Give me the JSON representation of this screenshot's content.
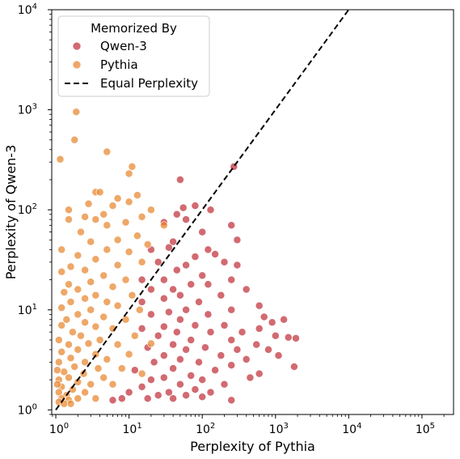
{
  "chart_data": {
    "type": "scatter",
    "xlabel": "Perplexity of Pythia",
    "ylabel": "Perplexity of Qwen-3",
    "xscale": "log",
    "yscale": "log",
    "xlim": [
      0.88,
      270000
    ],
    "ylim": [
      0.9,
      10000
    ],
    "x_ticks": [
      {
        "value": 1,
        "base": "10",
        "exp": "0"
      },
      {
        "value": 10,
        "base": "10",
        "exp": "1"
      },
      {
        "value": 100,
        "base": "10",
        "exp": "2"
      },
      {
        "value": 1000,
        "base": "10",
        "exp": "3"
      },
      {
        "value": 10000,
        "base": "10",
        "exp": "4"
      },
      {
        "value": 100000,
        "base": "10",
        "exp": "5"
      }
    ],
    "y_ticks": [
      {
        "value": 1,
        "base": "10",
        "exp": "0"
      },
      {
        "value": 10,
        "base": "10",
        "exp": "1"
      },
      {
        "value": 100,
        "base": "10",
        "exp": "2"
      },
      {
        "value": 1000,
        "base": "10",
        "exp": "3"
      },
      {
        "value": 10000,
        "base": "10",
        "exp": "4"
      }
    ],
    "grid": false,
    "legend": {
      "placement": "top-left",
      "title": "Memorized By",
      "entries": [
        {
          "label": "Qwen-3",
          "kind": "marker",
          "color": "#c0303a"
        },
        {
          "label": "Pythia",
          "kind": "marker",
          "color": "#e8872e"
        },
        {
          "label": "Equal Perplexity",
          "kind": "dashed-line",
          "color": "#000000"
        }
      ]
    },
    "reference_line": {
      "name": "Equal Perplexity",
      "x": [
        1,
        10000
      ],
      "y": [
        1,
        10000
      ],
      "style": "dashed",
      "color": "#000000"
    },
    "series": [
      {
        "name": "Qwen-3",
        "color": "#c0303a",
        "points": [
          [
            270,
            270
          ],
          [
            50,
            200
          ],
          [
            80,
            110
          ],
          [
            55,
            105
          ],
          [
            130,
            100
          ],
          [
            45,
            90
          ],
          [
            60,
            80
          ],
          [
            30,
            75
          ],
          [
            250,
            70
          ],
          [
            100,
            60
          ],
          [
            300,
            50
          ],
          [
            40,
            48
          ],
          [
            35,
            42
          ],
          [
            20,
            40
          ],
          [
            120,
            40
          ],
          [
            150,
            36
          ],
          [
            80,
            34
          ],
          [
            200,
            30
          ],
          [
            25,
            30
          ],
          [
            60,
            28
          ],
          [
            300,
            28
          ],
          [
            45,
            25
          ],
          [
            100,
            22
          ],
          [
            30,
            20
          ],
          [
            15,
            20
          ],
          [
            250,
            20
          ],
          [
            70,
            18
          ],
          [
            120,
            18
          ],
          [
            40,
            16
          ],
          [
            20,
            16
          ],
          [
            400,
            16
          ],
          [
            50,
            14
          ],
          [
            180,
            14
          ],
          [
            30,
            13
          ],
          [
            90,
            12
          ],
          [
            15,
            12
          ],
          [
            600,
            11
          ],
          [
            60,
            10
          ],
          [
            250,
            10
          ],
          [
            35,
            9.5
          ],
          [
            120,
            9
          ],
          [
            20,
            9
          ],
          [
            700,
            8.5
          ],
          [
            50,
            8
          ],
          [
            1300,
            8
          ],
          [
            900,
            7.5
          ],
          [
            80,
            7
          ],
          [
            200,
            7
          ],
          [
            30,
            6.8
          ],
          [
            600,
            6.5
          ],
          [
            15,
            6.5
          ],
          [
            45,
            6
          ],
          [
            130,
            6
          ],
          [
            350,
            6
          ],
          [
            1000,
            5.5
          ],
          [
            1900,
            5.2
          ],
          [
            1500,
            5.3
          ],
          [
            25,
            5.5
          ],
          [
            70,
            5
          ],
          [
            250,
            5
          ],
          [
            40,
            4.5
          ],
          [
            550,
            4.5
          ],
          [
            110,
            4.2
          ],
          [
            18,
            4.2
          ],
          [
            800,
            4
          ],
          [
            60,
            4
          ],
          [
            300,
            4
          ],
          [
            30,
            3.5
          ],
          [
            180,
            3.5
          ],
          [
            1100,
            3.5
          ],
          [
            50,
            3.2
          ],
          [
            400,
            3.2
          ],
          [
            90,
            3
          ],
          [
            22,
            3
          ],
          [
            250,
            2.8
          ],
          [
            1800,
            2.7
          ],
          [
            40,
            2.6
          ],
          [
            150,
            2.5
          ],
          [
            12,
            2.5
          ],
          [
            600,
            2.3
          ],
          [
            70,
            2.2
          ],
          [
            30,
            2.1
          ],
          [
            450,
            2.1
          ],
          [
            100,
            2
          ],
          [
            20,
            2
          ],
          [
            50,
            1.8
          ],
          [
            200,
            1.8
          ],
          [
            15,
            1.7
          ],
          [
            80,
            1.6
          ],
          [
            35,
            1.5
          ],
          [
            130,
            1.5
          ],
          [
            10,
            1.5
          ],
          [
            60,
            1.4
          ],
          [
            25,
            1.4
          ],
          [
            250,
            1.25
          ],
          [
            8,
            1.3
          ],
          [
            40,
            1.3
          ],
          [
            18,
            1.3
          ],
          [
            100,
            1.35
          ],
          [
            6,
            1.25
          ]
        ]
      },
      {
        "name": "Pythia",
        "color": "#e8872e",
        "points": [
          [
            1.9,
            950
          ],
          [
            1.8,
            500
          ],
          [
            1.15,
            320
          ],
          [
            5,
            380
          ],
          [
            11,
            270
          ],
          [
            10,
            230
          ],
          [
            3.5,
            150
          ],
          [
            4,
            150
          ],
          [
            13,
            140
          ],
          [
            7,
            130
          ],
          [
            10,
            120
          ],
          [
            2.8,
            115
          ],
          [
            6,
            110
          ],
          [
            20,
            100
          ],
          [
            1.5,
            100
          ],
          [
            4.5,
            90
          ],
          [
            2.5,
            85
          ],
          [
            15,
            85
          ],
          [
            3.5,
            80
          ],
          [
            1.5,
            80
          ],
          [
            9,
            75
          ],
          [
            5,
            70
          ],
          [
            30,
            70
          ],
          [
            2.2,
            60
          ],
          [
            13,
            55
          ],
          [
            7,
            50
          ],
          [
            3,
            48
          ],
          [
            18,
            45
          ],
          [
            1.2,
            40
          ],
          [
            5,
            40
          ],
          [
            10,
            38
          ],
          [
            2,
            35
          ],
          [
            3.5,
            32
          ],
          [
            15,
            30
          ],
          [
            7,
            28
          ],
          [
            1.6,
            27
          ],
          [
            2.5,
            25
          ],
          [
            1.2,
            24
          ],
          [
            4.5,
            22
          ],
          [
            9,
            20
          ],
          [
            3,
            19
          ],
          [
            1.5,
            18
          ],
          [
            6,
            17
          ],
          [
            2,
            16
          ],
          [
            1.3,
            15
          ],
          [
            3.5,
            14
          ],
          [
            11,
            14
          ],
          [
            2.5,
            13
          ],
          [
            5,
            12
          ],
          [
            1.6,
            12
          ],
          [
            7,
            11
          ],
          [
            1.2,
            10.5
          ],
          [
            3,
            10
          ],
          [
            14,
            10
          ],
          [
            2,
            9
          ],
          [
            4.5,
            8.5
          ],
          [
            1.4,
            8
          ],
          [
            9,
            8
          ],
          [
            2.5,
            7.5
          ],
          [
            1.2,
            7
          ],
          [
            3.5,
            6.8
          ],
          [
            6,
            6.5
          ],
          [
            1.7,
            6
          ],
          [
            2.2,
            5.5
          ],
          [
            12,
            5.5
          ],
          [
            1.1,
            5
          ],
          [
            4,
            5
          ],
          [
            2.8,
            4.6
          ],
          [
            1.5,
            4.5
          ],
          [
            7,
            4.5
          ],
          [
            20,
            4.6
          ],
          [
            2,
            4
          ],
          [
            1.2,
            3.8
          ],
          [
            3.5,
            3.6
          ],
          [
            10,
            3.6
          ],
          [
            1.6,
            3.3
          ],
          [
            5,
            3.2
          ],
          [
            2.5,
            3
          ],
          [
            1.1,
            3
          ],
          [
            1.8,
            2.7
          ],
          [
            3.8,
            2.6
          ],
          [
            8,
            2.6
          ],
          [
            1.3,
            2.4
          ],
          [
            2.4,
            2.3
          ],
          [
            15,
            2.3
          ],
          [
            1.5,
            2.1
          ],
          [
            4.5,
            2.1
          ],
          [
            1.1,
            2
          ],
          [
            2,
            1.9
          ],
          [
            3,
            1.8
          ],
          [
            6,
            1.8
          ],
          [
            1.2,
            1.7
          ],
          [
            1.7,
            1.6
          ],
          [
            1.1,
            1.5
          ],
          [
            2.5,
            1.5
          ],
          [
            1.4,
            1.4
          ],
          [
            1.2,
            1.3
          ],
          [
            2,
            1.3
          ],
          [
            3.5,
            1.3
          ],
          [
            1.5,
            1.25
          ],
          [
            1.1,
            1.2
          ],
          [
            1.6,
            1.15
          ],
          [
            1.3,
            1.15
          ],
          [
            1.05,
            1.8
          ],
          [
            1.05,
            2.5
          ]
        ]
      }
    ]
  }
}
